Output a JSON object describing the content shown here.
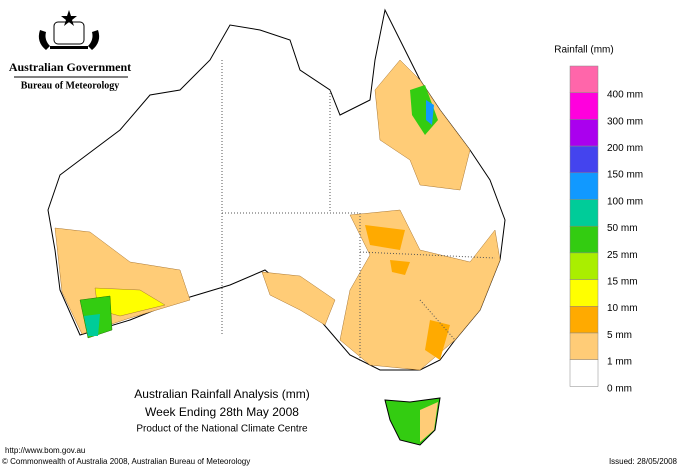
{
  "header": {
    "agency": "Australian Government",
    "bureau": "Bureau of Meteorology"
  },
  "legend": {
    "title": "Rainfall (mm)",
    "colors": [
      "#ff66aa",
      "#ff00dd",
      "#aa00ee",
      "#4444ee",
      "#1199ff",
      "#00cc99",
      "#33cc11",
      "#aaee00",
      "#ffff00",
      "#ffaa00",
      "#ffcc77",
      "#ffffff"
    ],
    "labels": [
      "400 mm",
      "300 mm",
      "200 mm",
      "150 mm",
      "100 mm",
      "50 mm",
      "25 mm",
      "15 mm",
      "10 mm",
      "5 mm",
      "1 mm",
      "0 mm"
    ]
  },
  "titles": [
    "Australian Rainfall Analysis (mm)",
    "Week Ending 28th May 2008",
    "Product of the National Climate Centre"
  ],
  "footer": {
    "url": "http://www.bom.gov.au",
    "copyright": "© Commonwealth of Australia 2008, Australian Bureau of Meteorology",
    "issued": "Issued: 28/05/2008"
  }
}
